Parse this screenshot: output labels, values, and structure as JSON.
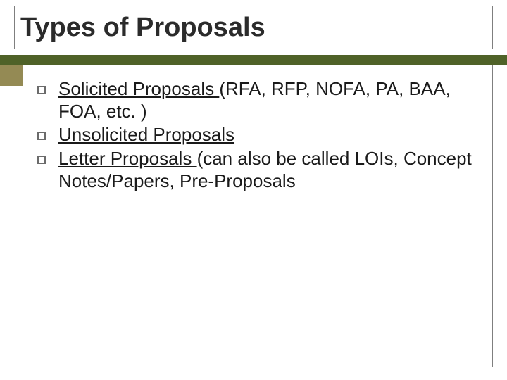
{
  "slide": {
    "title": "Types of Proposals",
    "accent_bar_color": "#4f6228",
    "accent_chip_color": "#948a54",
    "border_color": "#7f7f7f",
    "background_color": "#ffffff",
    "title_fontsize": 38,
    "body_fontsize": 26,
    "bullets": [
      {
        "lead": "Solicited Proposals ",
        "rest": "(RFA, RFP, NOFA, PA, BAA, FOA, etc. )"
      },
      {
        "lead": "Unsolicited Proposals",
        "rest": ""
      },
      {
        "lead": "Letter Proposals ",
        "rest": "(can also be called LOIs, Concept Notes/Papers, Pre-Proposals"
      }
    ]
  }
}
